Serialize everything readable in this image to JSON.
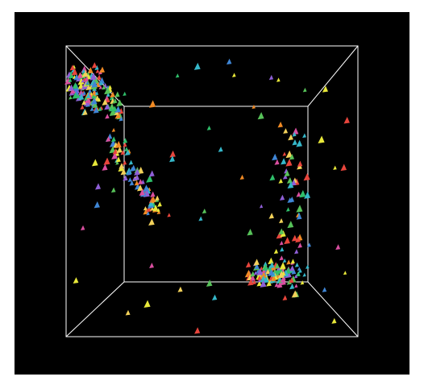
{
  "scene": {
    "background": "#000000",
    "frame_color": "#ffffff",
    "projection": "perspective",
    "frame": "wireframe-box",
    "marker_shape": "triangle",
    "marker_colors": [
      "#e8e83a",
      "#3f86d6",
      "#2fbf6a",
      "#e8453c",
      "#f08a24",
      "#8e5fd6",
      "#35b7c9",
      "#d94fa0",
      "#f2d15a",
      "#57c259"
    ],
    "clusters": [
      {
        "name": "upper-arc",
        "count": 150
      },
      {
        "name": "left-arc",
        "count": 80
      },
      {
        "name": "right-column",
        "count": 60
      },
      {
        "name": "lower-right",
        "count": 100
      },
      {
        "name": "scattered",
        "count": 60
      }
    ]
  }
}
